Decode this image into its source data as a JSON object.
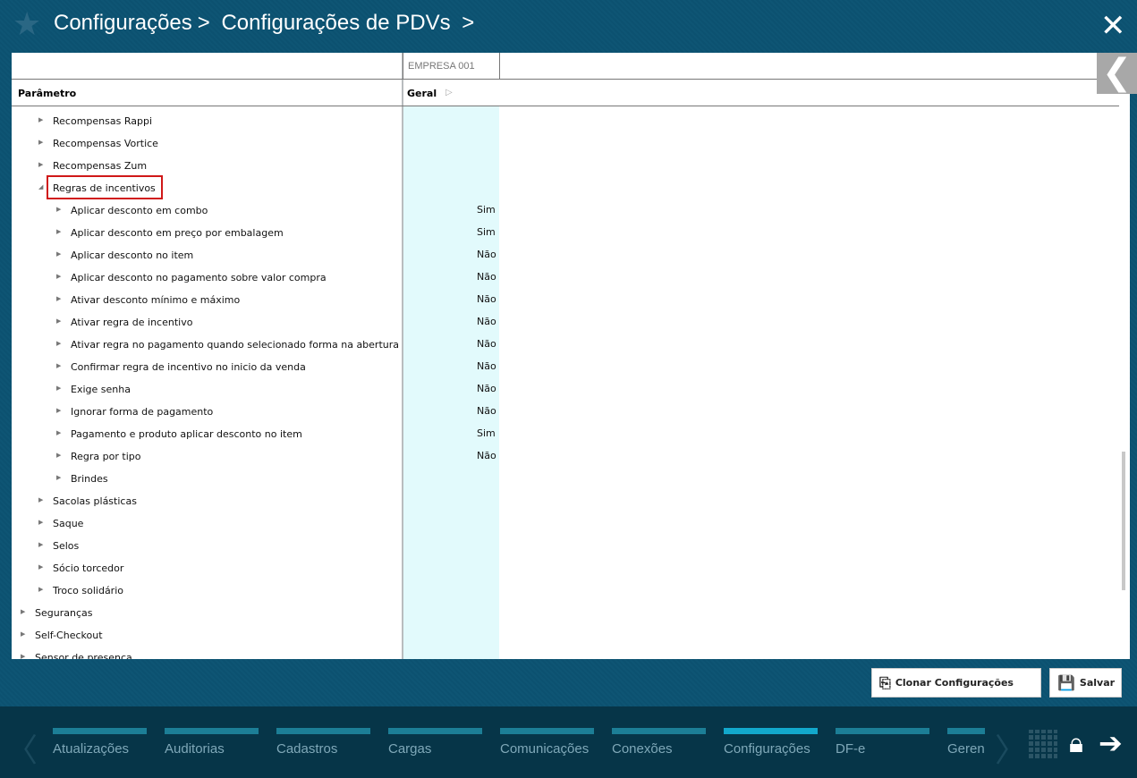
{
  "header": {
    "breadcrumbs": [
      "Configurações",
      "Configurações de PDVs"
    ],
    "separator": ">"
  },
  "grid": {
    "column_group": "EMPRESA 001",
    "param_header": "Parâmetro",
    "col_header": "Geral"
  },
  "rows": [
    {
      "label": "Recompensas Rappi",
      "level": 1,
      "value": ""
    },
    {
      "label": "Recompensas Vortice",
      "level": 1,
      "value": ""
    },
    {
      "label": "Recompensas Zum",
      "level": 1,
      "value": ""
    },
    {
      "label": "Regras de incentivos",
      "level": 1,
      "value": "",
      "expanded": true,
      "highlighted": true
    },
    {
      "label": "Aplicar desconto em combo",
      "level": 2,
      "value": "Sim"
    },
    {
      "label": "Aplicar desconto em preço por embalagem",
      "level": 2,
      "value": "Sim"
    },
    {
      "label": "Aplicar desconto no item",
      "level": 2,
      "value": "Não"
    },
    {
      "label": "Aplicar desconto no pagamento sobre valor compra",
      "level": 2,
      "value": "Não"
    },
    {
      "label": "Ativar desconto mínimo e máximo",
      "level": 2,
      "value": "Não"
    },
    {
      "label": "Ativar regra de incentivo",
      "level": 2,
      "value": "Não"
    },
    {
      "label": "Ativar regra no pagamento quando selecionado forma na abertura",
      "level": 2,
      "value": "Não"
    },
    {
      "label": "Confirmar regra de incentivo no inicio da venda",
      "level": 2,
      "value": "Não"
    },
    {
      "label": "Exige senha",
      "level": 2,
      "value": "Não"
    },
    {
      "label": "Ignorar forma de pagamento",
      "level": 2,
      "value": "Não"
    },
    {
      "label": "Pagamento e produto aplicar desconto no item",
      "level": 2,
      "value": "Sim"
    },
    {
      "label": "Regra por tipo",
      "level": 2,
      "value": "Não"
    },
    {
      "label": "Brindes",
      "level": 2,
      "value": ""
    },
    {
      "label": "Sacolas plásticas",
      "level": 1,
      "value": ""
    },
    {
      "label": "Saque",
      "level": 1,
      "value": ""
    },
    {
      "label": "Selos",
      "level": 1,
      "value": ""
    },
    {
      "label": "Sócio torcedor",
      "level": 1,
      "value": ""
    },
    {
      "label": "Troco solidário",
      "level": 1,
      "value": ""
    },
    {
      "label": "Seguranças",
      "level": 0,
      "value": ""
    },
    {
      "label": "Self-Checkout",
      "level": 0,
      "value": ""
    },
    {
      "label": "Sensor de presença",
      "level": 0,
      "value": ""
    }
  ],
  "actions": {
    "clone": "Clonar Configurações",
    "save": "Salvar"
  },
  "modules": [
    {
      "label": "Atualizações"
    },
    {
      "label": "Auditorias"
    },
    {
      "label": "Cadastros"
    },
    {
      "label": "Cargas"
    },
    {
      "label": "Comunicações"
    },
    {
      "label": "Conexões"
    },
    {
      "label": "Configurações",
      "active": true
    },
    {
      "label": "DF-e"
    },
    {
      "label": "Gerenciamento"
    }
  ],
  "colors": {
    "header_bg": "#0c5170",
    "footer_bg": "#063548",
    "column_highlight": "#e2fafc",
    "active_tab": "#12a8cc",
    "tab_bar": "#1c7e96",
    "highlight_border": "#d01818"
  }
}
